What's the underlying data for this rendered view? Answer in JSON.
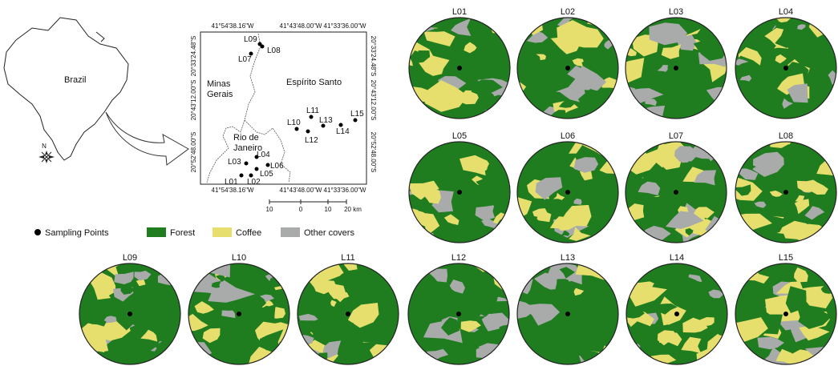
{
  "inset_map": {
    "country_label": "Brazil",
    "north_label": "N"
  },
  "study_map": {
    "top_longitudes": [
      "41°54'38.16\"W",
      "41°43'48.00\"W",
      "41°33'36.00\"W"
    ],
    "bottom_longitudes": [
      "41°54'38.16\"W",
      "41°43'48.00\"W",
      "41°33'36.00\"W"
    ],
    "left_latitudes": [
      "20°33'24.48\"S",
      "20°43'12.00\"S",
      "20°52'48.00\"S"
    ],
    "right_latitudes": [
      "20°33'24.48\"S",
      "20°43'12.00\"S",
      "20°52'48.00\"S"
    ],
    "regions": [
      [
        "Minas",
        "Gerais"
      ],
      [
        "Espírito Santo"
      ],
      [
        "Rio de",
        "Janeiro"
      ]
    ],
    "points": [
      "L01",
      "L02",
      "L03",
      "L04",
      "L05",
      "L06",
      "L07",
      "L08",
      "L09",
      "L10",
      "L11",
      "L12",
      "L13",
      "L14",
      "L15"
    ],
    "scale_labels": [
      "10",
      "0",
      "10",
      "20 km"
    ]
  },
  "legend": [
    "Sampling Points",
    "Forest",
    "Coffee",
    "Other covers"
  ],
  "landscapes": [
    "L01",
    "L02",
    "L03",
    "L04",
    "L05",
    "L06",
    "L07",
    "L08",
    "L09",
    "L10",
    "L11",
    "L12",
    "L13",
    "L14",
    "L15"
  ]
}
